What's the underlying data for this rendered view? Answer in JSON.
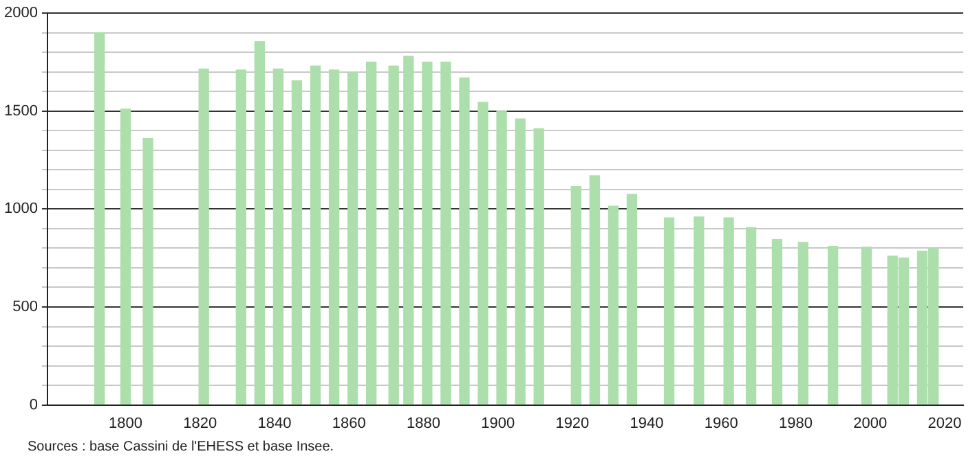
{
  "chart_data": {
    "type": "bar",
    "x": [
      1793,
      1800,
      1806,
      1821,
      1831,
      1836,
      1841,
      1846,
      1851,
      1856,
      1861,
      1866,
      1872,
      1876,
      1881,
      1886,
      1891,
      1896,
      1901,
      1906,
      1911,
      1921,
      1926,
      1931,
      1936,
      1946,
      1954,
      1962,
      1968,
      1975,
      1982,
      1990,
      1999,
      2006,
      2009,
      2014,
      2017
    ],
    "values": [
      1900,
      1510,
      1360,
      1715,
      1710,
      1855,
      1715,
      1655,
      1730,
      1710,
      1700,
      1750,
      1730,
      1780,
      1750,
      1750,
      1670,
      1545,
      1500,
      1460,
      1410,
      1115,
      1170,
      1015,
      1075,
      955,
      960,
      955,
      905,
      845,
      830,
      810,
      805,
      760,
      750,
      785,
      800
    ],
    "color": "#acdfac",
    "xlim": [
      1779,
      2025
    ],
    "xticks": [
      1800,
      1820,
      1840,
      1860,
      1880,
      1900,
      1920,
      1940,
      1960,
      1980,
      2000,
      2020
    ],
    "ylim": [
      0,
      2000
    ],
    "yticks": [
      0,
      {
        "value": 100,
        "label": null
      },
      {
        "value": 200,
        "label": null
      },
      {
        "value": 300,
        "label": null
      },
      {
        "value": 400,
        "label": null
      },
      500,
      {
        "value": 600,
        "label": null
      },
      {
        "value": 700,
        "label": null
      },
      {
        "value": 800,
        "label": null
      },
      {
        "value": 900,
        "label": null
      },
      1000,
      {
        "value": 1100,
        "label": null
      },
      {
        "value": 1200,
        "label": null
      },
      {
        "value": 1300,
        "label": null
      },
      {
        "value": 1400,
        "label": null
      },
      1500,
      {
        "value": 1600,
        "label": null
      },
      {
        "value": 1700,
        "label": null
      },
      {
        "value": 1800,
        "label": null
      },
      {
        "value": 1900,
        "label": null
      },
      2000
    ],
    "grid": "y",
    "annotations": [
      "Sources : base Cassini de l'EHESS et base Insee."
    ]
  }
}
